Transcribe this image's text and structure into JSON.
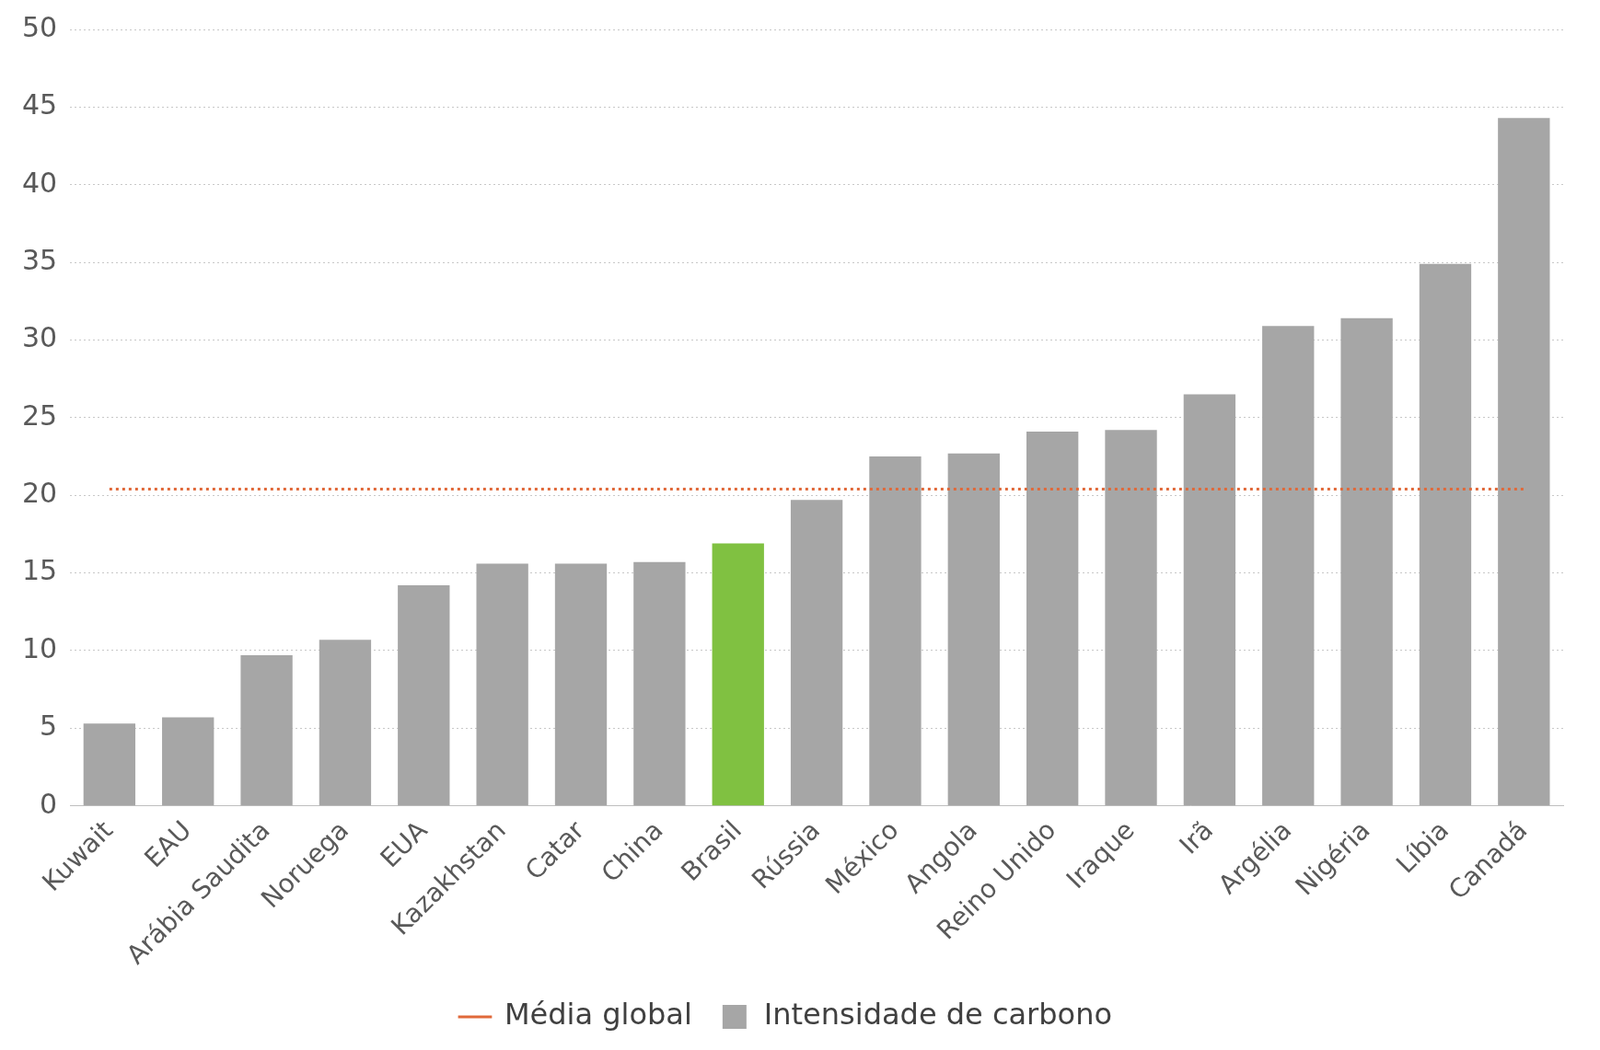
{
  "chart_data": {
    "type": "bar",
    "categories": [
      "Kuwait",
      "EAU",
      "Arábia Saudita",
      "Noruega",
      "EUA",
      "Kazakhstan",
      "Catar",
      "China",
      "Brasil",
      "Rússia",
      "México",
      "Angola",
      "Reino Unido",
      "Iraque",
      "Irã",
      "Argélia",
      "Nigéria",
      "Líbia",
      "Canadá"
    ],
    "series": [
      {
        "name": "Intensidade de carbono",
        "type": "bar",
        "colors": [
          "#a6a6a6",
          "#a6a6a6",
          "#a6a6a6",
          "#a6a6a6",
          "#a6a6a6",
          "#a6a6a6",
          "#a6a6a6",
          "#a6a6a6",
          "#80c141",
          "#a6a6a6",
          "#a6a6a6",
          "#a6a6a6",
          "#a6a6a6",
          "#a6a6a6",
          "#a6a6a6",
          "#a6a6a6",
          "#a6a6a6",
          "#a6a6a6",
          "#a6a6a6"
        ],
        "values": [
          5.3,
          5.7,
          9.7,
          10.7,
          14.2,
          15.6,
          15.6,
          15.7,
          16.9,
          19.7,
          22.5,
          22.7,
          24.1,
          24.2,
          26.5,
          30.9,
          31.4,
          34.9,
          44.3
        ]
      },
      {
        "name": "Média global",
        "type": "line",
        "line_style": "dotted",
        "color": "#e0693a",
        "values": [
          20.4,
          20.4,
          20.4,
          20.4,
          20.4,
          20.4,
          20.4,
          20.4,
          20.4,
          20.4,
          20.4,
          20.4,
          20.4,
          20.4,
          20.4,
          20.4,
          20.4,
          20.4,
          20.4
        ]
      }
    ],
    "ylim": [
      0,
      50
    ],
    "yticks": [
      0,
      5,
      10,
      15,
      20,
      25,
      30,
      35,
      40,
      45,
      50
    ],
    "grid": true,
    "legend": "bottom"
  }
}
